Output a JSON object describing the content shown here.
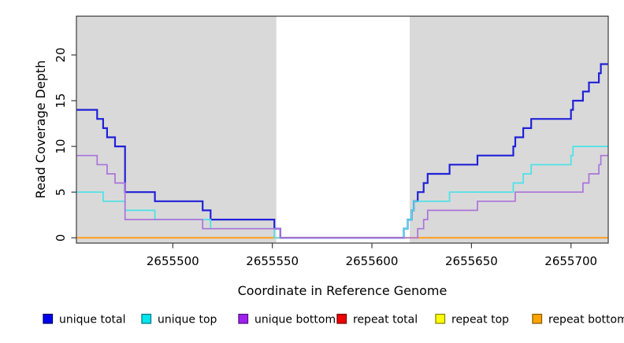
{
  "figure": {
    "ylabel": "Read Coverage Depth",
    "xlabel": "Coordinate in Reference Genome"
  },
  "chart_data": {
    "type": "line",
    "subtype": "step-coverage",
    "title": "",
    "xlabel": "Coordinate in Reference Genome",
    "ylabel": "Read Coverage Depth",
    "xlim": [
      2655451.6,
      2655718.7
    ],
    "ylim": [
      -0.6,
      24.3
    ],
    "x_ticks": [
      2655500,
      2655550,
      2655600,
      2655650,
      2655700
    ],
    "y_ticks": [
      0,
      5,
      10,
      15,
      20
    ],
    "grid": false,
    "legend_position": "bottom",
    "panel_highlight_color": "#d9d9d9",
    "highlight_regions": [
      [
        2655451.6,
        2655552
      ],
      [
        2655619,
        2655718.7
      ]
    ],
    "series": [
      {
        "name": "unique total",
        "line_color": "#2121d8",
        "legend_fill": "#0000ee",
        "legend_border": "#00006e",
        "line_width": 2.2,
        "points": [
          [
            2655451.6,
            14
          ],
          [
            2655462,
            13
          ],
          [
            2655465,
            12
          ],
          [
            2655467,
            11
          ],
          [
            2655471,
            10
          ],
          [
            2655476,
            5
          ],
          [
            2655491,
            4
          ],
          [
            2655515,
            3
          ],
          [
            2655519,
            2
          ],
          [
            2655551,
            1
          ],
          [
            2655554,
            0
          ],
          [
            2655616,
            1
          ],
          [
            2655618,
            2
          ],
          [
            2655620,
            3
          ],
          [
            2655621,
            4
          ],
          [
            2655623,
            5
          ],
          [
            2655626,
            6
          ],
          [
            2655628,
            7
          ],
          [
            2655639,
            8
          ],
          [
            2655653,
            9
          ],
          [
            2655671,
            10
          ],
          [
            2655672,
            11
          ],
          [
            2655676,
            12
          ],
          [
            2655680,
            13
          ],
          [
            2655700,
            14
          ],
          [
            2655701,
            15
          ],
          [
            2655706,
            16
          ],
          [
            2655709,
            17
          ],
          [
            2655714,
            18
          ],
          [
            2655715,
            19
          ]
        ]
      },
      {
        "name": "unique top",
        "line_color": "#49e2e8",
        "legend_fill": "#00e5ee",
        "legend_border": "#007d86",
        "line_width": 1.7,
        "points": [
          [
            2655451.6,
            5
          ],
          [
            2655465,
            4
          ],
          [
            2655476,
            3
          ],
          [
            2655491,
            2
          ],
          [
            2655519,
            1
          ],
          [
            2655551,
            0
          ],
          [
            2655616,
            1
          ],
          [
            2655618,
            2
          ],
          [
            2655620,
            3
          ],
          [
            2655621,
            4
          ],
          [
            2655639,
            5
          ],
          [
            2655671,
            6
          ],
          [
            2655676,
            7
          ],
          [
            2655680,
            8
          ],
          [
            2655700,
            9
          ],
          [
            2655701,
            10
          ]
        ]
      },
      {
        "name": "unique bottom",
        "line_color": "#ab74da",
        "legend_fill": "#a020f0",
        "legend_border": "#551280",
        "line_width": 1.7,
        "points": [
          [
            2655451.6,
            9
          ],
          [
            2655462,
            8
          ],
          [
            2655467,
            7
          ],
          [
            2655471,
            6
          ],
          [
            2655476,
            2
          ],
          [
            2655515,
            1
          ],
          [
            2655554,
            0
          ],
          [
            2655623,
            1
          ],
          [
            2655626,
            2
          ],
          [
            2655628,
            3
          ],
          [
            2655653,
            4
          ],
          [
            2655672,
            5
          ],
          [
            2655706,
            6
          ],
          [
            2655709,
            7
          ],
          [
            2655714,
            8
          ],
          [
            2655715,
            9
          ]
        ]
      },
      {
        "name": "repeat total",
        "line_color": "#ee0000",
        "legend_fill": "#ee0000",
        "legend_border": "#7c0000",
        "line_width": 1.5,
        "points": [
          [
            2655451.6,
            0
          ]
        ]
      },
      {
        "name": "repeat top",
        "line_color": "#ffff00",
        "legend_fill": "#ffff00",
        "legend_border": "#8a8a00",
        "line_width": 1.5,
        "points": [
          [
            2655451.6,
            0
          ]
        ]
      },
      {
        "name": "repeat bottom",
        "line_color": "#ff9e1e",
        "legend_fill": "#ffa500",
        "legend_border": "#8a5c00",
        "line_width": 2,
        "points": [
          [
            2655451.6,
            0
          ]
        ]
      }
    ]
  },
  "legend": {
    "items": [
      "unique total",
      "unique top",
      "unique bottom",
      "repeat total",
      "repeat top",
      "repeat bottom"
    ]
  }
}
